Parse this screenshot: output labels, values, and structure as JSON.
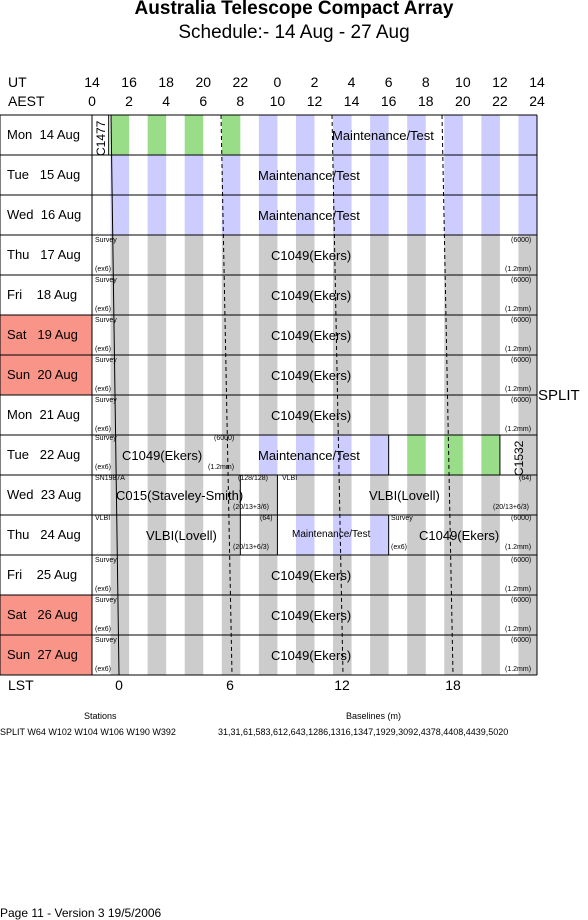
{
  "header": {
    "title": "Australia Telescope Compact Array",
    "subtitle": "Schedule:- 14 Aug - 27 Aug"
  },
  "axis": {
    "ut_label": "UT",
    "aest_label": "AEST",
    "ut_ticks": [
      "14",
      "16",
      "18",
      "20",
      "22",
      "0",
      "2",
      "4",
      "6",
      "8",
      "10",
      "12",
      "14"
    ],
    "aest_ticks": [
      "0",
      "2",
      "4",
      "6",
      "8",
      "10",
      "12",
      "14",
      "16",
      "18",
      "20",
      "22",
      "24"
    ],
    "lst_label": "LST",
    "lst_ticks": [
      "0",
      "6",
      "12",
      "18"
    ]
  },
  "days": [
    {
      "label": "Mon  14 Aug",
      "weekend": false
    },
    {
      "label": "Tue   15 Aug",
      "weekend": false
    },
    {
      "label": "Wed  16 Aug",
      "weekend": false
    },
    {
      "label": "Thu   17 Aug",
      "weekend": false
    },
    {
      "label": "Fri    18 Aug",
      "weekend": false
    },
    {
      "label": "Sat   19 Aug",
      "weekend": true
    },
    {
      "label": "Sun  20 Aug",
      "weekend": true
    },
    {
      "label": "Mon  21 Aug",
      "weekend": false
    },
    {
      "label": "Tue   22 Aug",
      "weekend": false
    },
    {
      "label": "Wed  23 Aug",
      "weekend": false
    },
    {
      "label": "Thu   24 Aug",
      "weekend": false
    },
    {
      "label": "Fri    25 Aug",
      "weekend": false
    },
    {
      "label": "Sat   26 Aug",
      "weekend": true
    },
    {
      "label": "Sun  27 Aug",
      "weekend": true
    }
  ],
  "blocks": {
    "c1477": "C1477",
    "maintenance": "Maintenance/Test",
    "c1049": "C1049(Ekers)",
    "survey": "Survey",
    "ex6": "(ex6)",
    "band": "(6000)",
    "res": "(1.2mm)",
    "c1532": "C1532",
    "sn1987a": "SN1987A",
    "c015": "C015(Staveley-Smith)",
    "c015_band": "(128/128)",
    "c015_res": "(20/13+3/6)",
    "vlbi": "VLBI",
    "vlbi_label": "VLBI(Lovell)",
    "vlbi_band": "(64)",
    "vlbi_res": "(20/13+6/3)"
  },
  "split_label": "SPLIT",
  "footer": {
    "stations_title": "Stations",
    "stations_value": "SPLIT W64 W102 W104 W106 W190 W392",
    "baselines_title": "Baselines (m)",
    "baselines_value": "31,31,61,583,612,643,1286,1316,1347,1929,3092,4378,4408,4439,5020",
    "page": "Page 11 - Version 3  19/5/2006"
  }
}
